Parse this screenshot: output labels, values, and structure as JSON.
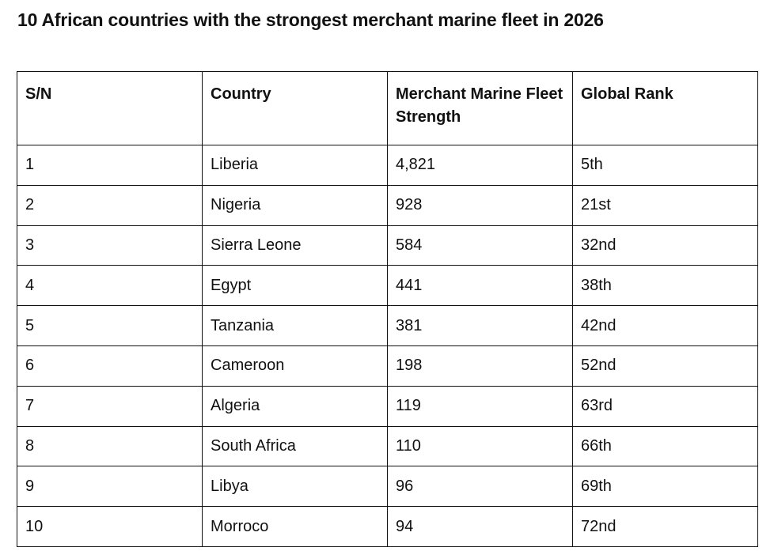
{
  "header": {
    "title": "10 African countries with the strongest merchant marine fleet in 2026"
  },
  "table": {
    "columns": [
      "S/N",
      "Country",
      "Merchant Marine Fleet Strength",
      "Global Rank"
    ],
    "rows": [
      [
        "1",
        "Liberia",
        "4,821",
        "5th"
      ],
      [
        "2",
        "Nigeria",
        "928",
        "21st"
      ],
      [
        "3",
        "Sierra Leone",
        "584",
        "32nd"
      ],
      [
        "4",
        "Egypt",
        "441",
        "38th"
      ],
      [
        "5",
        "Tanzania",
        "381",
        "42nd"
      ],
      [
        "6",
        "Cameroon",
        "198",
        "52nd"
      ],
      [
        "7",
        "Algeria",
        "119",
        "63rd"
      ],
      [
        "8",
        "South Africa",
        "110",
        "66th"
      ],
      [
        "9",
        "Libya",
        "96",
        "69th"
      ],
      [
        "10",
        "Morroco",
        "94",
        "72nd"
      ]
    ]
  }
}
